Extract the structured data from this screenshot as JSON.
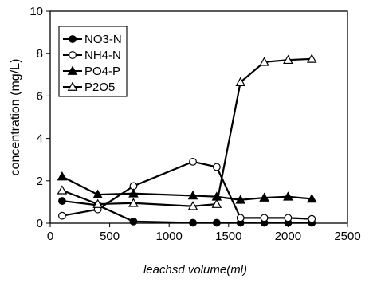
{
  "chart_data": {
    "type": "line",
    "xlabel": "leachsd volume(ml)",
    "ylabel": "concentration (mg/L)",
    "xlim": [
      0,
      2500
    ],
    "ylim": [
      0,
      10
    ],
    "xticks": [
      0,
      500,
      1000,
      1500,
      2000,
      2500
    ],
    "yticks": [
      0,
      2,
      4,
      6,
      8,
      10
    ],
    "legend_position": "top-left",
    "grid": false,
    "series": [
      {
        "name": "NO3-N",
        "marker": "filled-circle",
        "x": [
          100,
          400,
          700,
          1200,
          1400,
          1600,
          1800,
          2000,
          2200
        ],
        "y": [
          1.05,
          0.85,
          0.08,
          0.02,
          0.02,
          0.02,
          0.02,
          0.02,
          0.02
        ]
      },
      {
        "name": "NH4-N",
        "marker": "open-circle",
        "x": [
          100,
          400,
          700,
          1200,
          1400,
          1600,
          1800,
          2000,
          2200
        ],
        "y": [
          0.35,
          0.65,
          1.75,
          2.9,
          2.65,
          0.25,
          0.25,
          0.25,
          0.2
        ]
      },
      {
        "name": "PO4-P",
        "marker": "filled-triangle",
        "x": [
          100,
          400,
          700,
          1200,
          1400,
          1600,
          1800,
          2000,
          2200
        ],
        "y": [
          2.2,
          1.35,
          1.4,
          1.3,
          1.25,
          1.1,
          1.2,
          1.25,
          1.15
        ]
      },
      {
        "name": "P2O5",
        "marker": "open-triangle",
        "x": [
          100,
          400,
          700,
          1200,
          1400,
          1600,
          1800,
          2000,
          2200
        ],
        "y": [
          1.55,
          0.9,
          0.95,
          0.8,
          0.9,
          6.65,
          7.6,
          7.7,
          7.75
        ]
      }
    ]
  }
}
